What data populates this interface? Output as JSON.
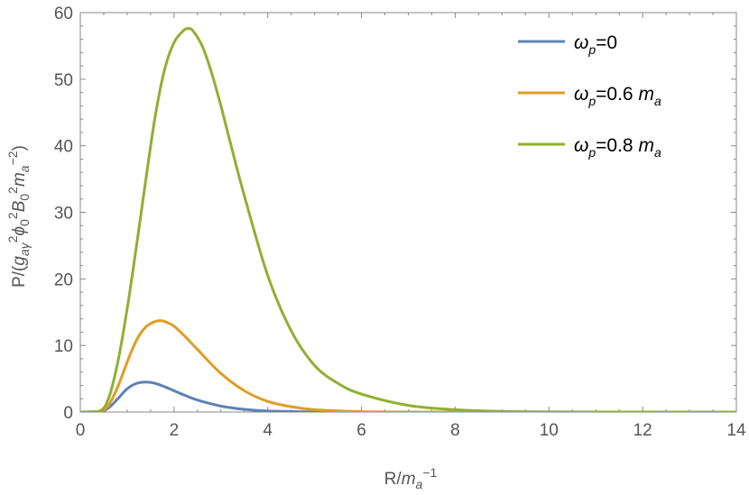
{
  "chart_data": {
    "type": "line",
    "title": "",
    "xlabel": {
      "base": "R/",
      "var": "m",
      "sub": "a",
      "sup": "−1"
    },
    "ylabel": {
      "parts": [
        {
          "t": "P/(",
          "style": "normal"
        },
        {
          "t": "g",
          "style": "italic"
        },
        {
          "t": "aγ",
          "style": "italic-sub"
        },
        {
          "t": "2",
          "style": "sup"
        },
        {
          "t": "ϕ",
          "style": "italic"
        },
        {
          "t": "0",
          "style": "sub"
        },
        {
          "t": "2",
          "style": "sup"
        },
        {
          "t": "B",
          "style": "italic"
        },
        {
          "t": "0",
          "style": "sub"
        },
        {
          "t": "2",
          "style": "sup"
        },
        {
          "t": "m",
          "style": "italic"
        },
        {
          "t": "a",
          "style": "italic-sub"
        },
        {
          "t": "−2",
          "style": "sup"
        },
        {
          "t": ")",
          "style": "normal"
        }
      ]
    },
    "xlim": [
      0,
      14
    ],
    "ylim": [
      0,
      60
    ],
    "xticks": [
      0,
      2,
      4,
      6,
      8,
      10,
      12,
      14
    ],
    "yticks": [
      0,
      10,
      20,
      30,
      40,
      50,
      60
    ],
    "grid": false,
    "legend_position": "top-right",
    "series": [
      {
        "name": "ωp=0",
        "legend": {
          "w": "ω",
          "p": "p",
          "rest": "=0",
          "m": "",
          "a": ""
        },
        "color": "#5e81b5",
        "x": [
          0,
          0.4,
          0.6,
          0.8,
          1.0,
          1.2,
          1.4,
          1.6,
          1.8,
          2.0,
          2.2,
          2.5,
          3.0,
          3.5,
          4.0,
          5.0,
          6.0,
          8.0,
          10.0,
          12.0,
          14.0
        ],
        "y": [
          0,
          0.05,
          0.6,
          2.0,
          3.5,
          4.3,
          4.5,
          4.3,
          3.8,
          3.2,
          2.6,
          1.8,
          0.9,
          0.4,
          0.15,
          0.02,
          0,
          0,
          0,
          0,
          0
        ]
      },
      {
        "name": "ωp=0.6 ma",
        "legend": {
          "w": "ω",
          "p": "p",
          "rest": "=0.6 ",
          "m": "m",
          "a": "a"
        },
        "color": "#e19c24",
        "x": [
          0,
          0.4,
          0.6,
          0.8,
          1.0,
          1.2,
          1.4,
          1.6,
          1.75,
          1.9,
          2.0,
          2.2,
          2.5,
          3.0,
          3.5,
          4.0,
          4.5,
          5.0,
          6.0,
          7.0,
          8.0,
          10.0,
          12.0,
          14.0
        ],
        "y": [
          0,
          0.1,
          1.0,
          3.8,
          7.5,
          10.8,
          12.8,
          13.6,
          13.7,
          13.3,
          12.9,
          11.6,
          9.4,
          5.8,
          3.2,
          1.6,
          0.8,
          0.35,
          0.06,
          0.01,
          0,
          0,
          0,
          0
        ]
      },
      {
        "name": "ωp=0.8 ma",
        "legend": {
          "w": "ω",
          "p": "p",
          "rest": "=0.8 ",
          "m": "m",
          "a": "a"
        },
        "color": "#8fb032",
        "x": [
          0,
          0.4,
          0.6,
          0.8,
          1.0,
          1.2,
          1.4,
          1.6,
          1.8,
          2.0,
          2.2,
          2.3,
          2.4,
          2.6,
          2.8,
          3.0,
          3.2,
          3.5,
          4.0,
          4.5,
          5.0,
          5.5,
          6.0,
          7.0,
          8.0,
          9.0,
          10.0,
          12.0,
          14.0
        ],
        "y": [
          0,
          0.1,
          2.0,
          7.5,
          15.5,
          25.0,
          35.0,
          44.5,
          51.5,
          55.5,
          57.3,
          57.6,
          57.3,
          55.0,
          51.0,
          46.0,
          40.5,
          32.5,
          20.5,
          12.2,
          7.0,
          4.3,
          2.7,
          1.0,
          0.35,
          0.1,
          0.03,
          0,
          0
        ]
      }
    ]
  }
}
